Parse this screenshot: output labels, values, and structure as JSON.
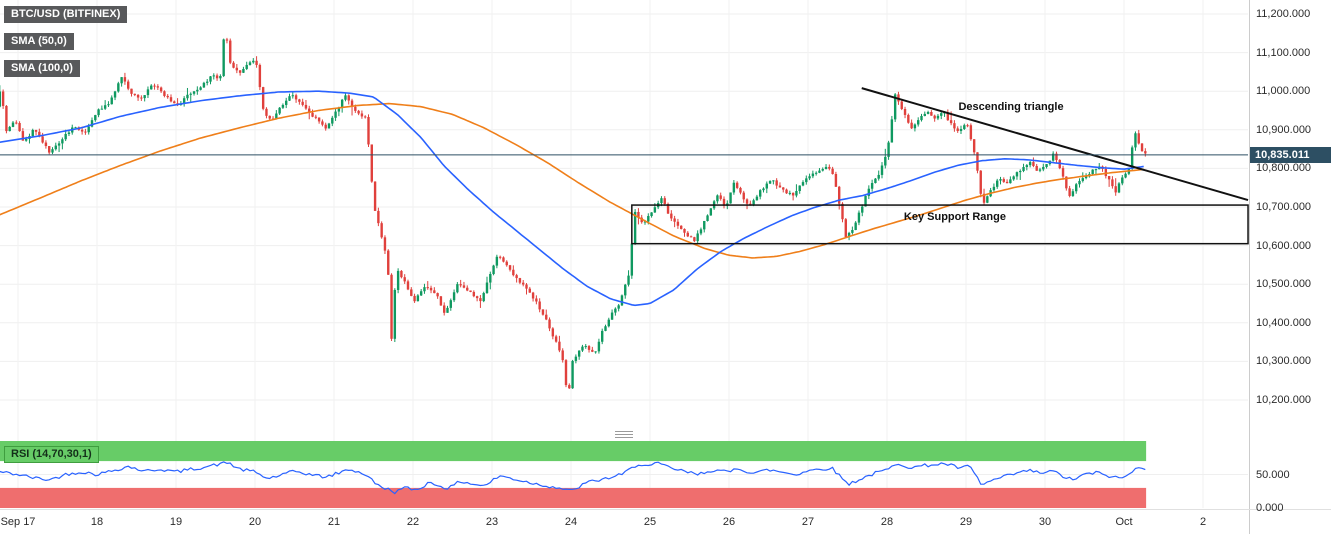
{
  "legend": {
    "symbol": "BTC/USD (BITFINEX)",
    "sma50": "SMA (50,0)",
    "sma100": "SMA (100,0)",
    "rsi": "RSI (14,70,30,1)"
  },
  "price_badge": {
    "label": "10,835.011"
  },
  "colors": {
    "bull": "#0f9960",
    "bear": "#e0403c",
    "sma50": "#2962ff",
    "sma100": "#ef7f1a",
    "rsi_line": "#2962ff",
    "rsi_overbought_band": "#67cc67",
    "rsi_oversold_band": "#ef6e6e",
    "last_price": "#2d4f63",
    "trendline": "#111111",
    "support_box": "#111111"
  },
  "chart_data": {
    "type": "candlestick",
    "title": "BTC/USD (BITFINEX)",
    "indicators": [
      "SMA (50,0)",
      "SMA (100,0)",
      "RSI (14,70,30,1)"
    ],
    "last_price": 10835.011,
    "candles_per_day": 24,
    "x_axis": {
      "labels": [
        {
          "day": 0,
          "label": "Sep 17"
        },
        {
          "day": 1,
          "label": "18"
        },
        {
          "day": 2,
          "label": "19"
        },
        {
          "day": 3,
          "label": "20"
        },
        {
          "day": 4,
          "label": "21"
        },
        {
          "day": 5,
          "label": "22"
        },
        {
          "day": 6,
          "label": "23"
        },
        {
          "day": 7,
          "label": "24"
        },
        {
          "day": 8,
          "label": "25"
        },
        {
          "day": 9,
          "label": "26"
        },
        {
          "day": 10,
          "label": "27"
        },
        {
          "day": 11,
          "label": "28"
        },
        {
          "day": 12,
          "label": "29"
        },
        {
          "day": 13,
          "label": "30"
        },
        {
          "day": 14,
          "label": "Oct"
        },
        {
          "day": 15,
          "label": "2"
        }
      ]
    },
    "y_axis": {
      "min": 10200,
      "max": 11200,
      "tick_step": 100,
      "labels": [
        {
          "value": 11200,
          "label": "11,200.000"
        },
        {
          "value": 11100,
          "label": "11,100.000"
        },
        {
          "value": 11000,
          "label": "11,000.000"
        },
        {
          "value": 10900,
          "label": "10,900.000"
        },
        {
          "value": 10800,
          "label": "10,800.000"
        },
        {
          "value": 10700,
          "label": "10,700.000"
        },
        {
          "value": 10600,
          "label": "10,600.000"
        },
        {
          "value": 10500,
          "label": "10,500.000"
        },
        {
          "value": 10400,
          "label": "10,400.000"
        },
        {
          "value": 10300,
          "label": "10,300.000"
        },
        {
          "value": 10200,
          "label": "10,200.000"
        }
      ]
    },
    "annotations": {
      "descending_triangle": {
        "label": "Descending triangle",
        "day": 12.57,
        "price": 10958
      },
      "key_support_range": {
        "label": "Key Support Range",
        "day": 11.86,
        "price": 10675
      },
      "trendline": {
        "from_day": 10.68,
        "from_price": 11008,
        "to_day": 15.57,
        "to_price": 10718
      },
      "support_box": {
        "from_day": 7.77,
        "to_day": 15.57,
        "top_price": 10705,
        "bottom_price": 10605
      }
    },
    "price_path": [
      [
        -0.23,
        10960
      ],
      [
        -0.18,
        11010
      ],
      [
        -0.1,
        10890
      ],
      [
        0.0,
        10930
      ],
      [
        0.1,
        10870
      ],
      [
        0.25,
        10900
      ],
      [
        0.45,
        10840
      ],
      [
        0.6,
        10875
      ],
      [
        0.75,
        10910
      ],
      [
        0.9,
        10890
      ],
      [
        1.05,
        10950
      ],
      [
        1.2,
        10970
      ],
      [
        1.35,
        11040
      ],
      [
        1.45,
        11000
      ],
      [
        1.6,
        10980
      ],
      [
        1.75,
        11020
      ],
      [
        1.9,
        10990
      ],
      [
        2.05,
        10960
      ],
      [
        2.2,
        10990
      ],
      [
        2.35,
        11010
      ],
      [
        2.5,
        11040
      ],
      [
        2.6,
        11030
      ],
      [
        2.66,
        11165
      ],
      [
        2.73,
        11070
      ],
      [
        2.85,
        11050
      ],
      [
        2.95,
        11070
      ],
      [
        3.05,
        11085
      ],
      [
        3.15,
        10950
      ],
      [
        3.25,
        10920
      ],
      [
        3.4,
        10970
      ],
      [
        3.5,
        10995
      ],
      [
        3.65,
        10960
      ],
      [
        3.8,
        10930
      ],
      [
        3.95,
        10905
      ],
      [
        4.1,
        10960
      ],
      [
        4.18,
        10995
      ],
      [
        4.3,
        10950
      ],
      [
        4.45,
        10930
      ],
      [
        4.55,
        10700
      ],
      [
        4.65,
        10620
      ],
      [
        4.72,
        10560
      ],
      [
        4.77,
        10360
      ],
      [
        4.83,
        10540
      ],
      [
        4.95,
        10500
      ],
      [
        5.05,
        10455
      ],
      [
        5.2,
        10500
      ],
      [
        5.35,
        10470
      ],
      [
        5.45,
        10420
      ],
      [
        5.6,
        10500
      ],
      [
        5.75,
        10480
      ],
      [
        5.9,
        10455
      ],
      [
        6.05,
        10545
      ],
      [
        6.12,
        10575
      ],
      [
        6.25,
        10540
      ],
      [
        6.4,
        10505
      ],
      [
        6.55,
        10470
      ],
      [
        6.7,
        10420
      ],
      [
        6.85,
        10350
      ],
      [
        6.96,
        10290
      ],
      [
        7.0,
        10185
      ],
      [
        7.05,
        10295
      ],
      [
        7.2,
        10345
      ],
      [
        7.35,
        10320
      ],
      [
        7.45,
        10385
      ],
      [
        7.55,
        10420
      ],
      [
        7.65,
        10445
      ],
      [
        7.78,
        10530
      ],
      [
        7.85,
        10690
      ],
      [
        7.95,
        10655
      ],
      [
        8.1,
        10700
      ],
      [
        8.2,
        10725
      ],
      [
        8.3,
        10670
      ],
      [
        8.45,
        10640
      ],
      [
        8.6,
        10612
      ],
      [
        8.7,
        10650
      ],
      [
        8.8,
        10690
      ],
      [
        8.9,
        10730
      ],
      [
        9.0,
        10700
      ],
      [
        9.1,
        10762
      ],
      [
        9.2,
        10730
      ],
      [
        9.3,
        10705
      ],
      [
        9.45,
        10745
      ],
      [
        9.6,
        10770
      ],
      [
        9.7,
        10745
      ],
      [
        9.85,
        10730
      ],
      [
        10.0,
        10770
      ],
      [
        10.1,
        10785
      ],
      [
        10.25,
        10805
      ],
      [
        10.35,
        10790
      ],
      [
        10.45,
        10700
      ],
      [
        10.52,
        10622
      ],
      [
        10.62,
        10645
      ],
      [
        10.72,
        10700
      ],
      [
        10.82,
        10755
      ],
      [
        10.95,
        10790
      ],
      [
        11.05,
        10850
      ],
      [
        11.15,
        10995
      ],
      [
        11.25,
        10945
      ],
      [
        11.35,
        10905
      ],
      [
        11.45,
        10930
      ],
      [
        11.55,
        10945
      ],
      [
        11.65,
        10930
      ],
      [
        11.75,
        10950
      ],
      [
        11.85,
        10915
      ],
      [
        11.95,
        10895
      ],
      [
        12.05,
        10920
      ],
      [
        12.15,
        10840
      ],
      [
        12.25,
        10705
      ],
      [
        12.35,
        10740
      ],
      [
        12.45,
        10772
      ],
      [
        12.55,
        10760
      ],
      [
        12.65,
        10780
      ],
      [
        12.75,
        10800
      ],
      [
        12.85,
        10815
      ],
      [
        12.95,
        10795
      ],
      [
        13.05,
        10805
      ],
      [
        13.15,
        10840
      ],
      [
        13.25,
        10790
      ],
      [
        13.35,
        10725
      ],
      [
        13.45,
        10760
      ],
      [
        13.55,
        10780
      ],
      [
        13.65,
        10795
      ],
      [
        13.75,
        10805
      ],
      [
        13.85,
        10770
      ],
      [
        13.95,
        10735
      ],
      [
        14.0,
        10775
      ],
      [
        14.08,
        10790
      ],
      [
        14.12,
        10800
      ],
      [
        14.17,
        10902
      ],
      [
        14.23,
        10862
      ],
      [
        14.28,
        10838
      ]
    ],
    "sma50": [
      [
        -0.23,
        10868
      ],
      [
        0.3,
        10885
      ],
      [
        0.8,
        10905
      ],
      [
        1.3,
        10935
      ],
      [
        1.8,
        10958
      ],
      [
        2.3,
        10975
      ],
      [
        2.8,
        10988
      ],
      [
        3.3,
        10998
      ],
      [
        3.8,
        11000
      ],
      [
        4.2,
        10995
      ],
      [
        4.5,
        10985
      ],
      [
        4.8,
        10940
      ],
      [
        5.1,
        10880
      ],
      [
        5.4,
        10805
      ],
      [
        5.7,
        10745
      ],
      [
        6.0,
        10690
      ],
      [
        6.3,
        10640
      ],
      [
        6.6,
        10590
      ],
      [
        6.9,
        10540
      ],
      [
        7.2,
        10495
      ],
      [
        7.5,
        10462
      ],
      [
        7.8,
        10445
      ],
      [
        8.0,
        10450
      ],
      [
        8.3,
        10485
      ],
      [
        8.6,
        10540
      ],
      [
        8.9,
        10585
      ],
      [
        9.2,
        10620
      ],
      [
        9.5,
        10650
      ],
      [
        9.8,
        10678
      ],
      [
        10.1,
        10700
      ],
      [
        10.4,
        10718
      ],
      [
        10.7,
        10730
      ],
      [
        11.0,
        10748
      ],
      [
        11.3,
        10768
      ],
      [
        11.6,
        10790
      ],
      [
        11.9,
        10808
      ],
      [
        12.2,
        10820
      ],
      [
        12.5,
        10825
      ],
      [
        12.8,
        10822
      ],
      [
        13.1,
        10815
      ],
      [
        13.4,
        10808
      ],
      [
        13.7,
        10802
      ],
      [
        14.0,
        10798
      ],
      [
        14.28,
        10806
      ]
    ],
    "sma100": [
      [
        -0.23,
        10680
      ],
      [
        0.3,
        10725
      ],
      [
        0.8,
        10768
      ],
      [
        1.3,
        10808
      ],
      [
        1.8,
        10845
      ],
      [
        2.3,
        10878
      ],
      [
        2.8,
        10905
      ],
      [
        3.3,
        10930
      ],
      [
        3.8,
        10950
      ],
      [
        4.3,
        10963
      ],
      [
        4.7,
        10968
      ],
      [
        5.1,
        10960
      ],
      [
        5.5,
        10940
      ],
      [
        5.9,
        10905
      ],
      [
        6.3,
        10862
      ],
      [
        6.7,
        10815
      ],
      [
        7.1,
        10762
      ],
      [
        7.5,
        10712
      ],
      [
        7.9,
        10668
      ],
      [
        8.3,
        10625
      ],
      [
        8.7,
        10592
      ],
      [
        9.0,
        10575
      ],
      [
        9.3,
        10568
      ],
      [
        9.6,
        10572
      ],
      [
        9.9,
        10585
      ],
      [
        10.2,
        10602
      ],
      [
        10.5,
        10622
      ],
      [
        10.8,
        10642
      ],
      [
        11.1,
        10660
      ],
      [
        11.4,
        10678
      ],
      [
        11.7,
        10698
      ],
      [
        12.0,
        10718
      ],
      [
        12.3,
        10735
      ],
      [
        12.6,
        10750
      ],
      [
        12.9,
        10762
      ],
      [
        13.2,
        10772
      ],
      [
        13.5,
        10780
      ],
      [
        13.8,
        10788
      ],
      [
        14.28,
        10798
      ]
    ],
    "rsi": {
      "overbought": 70,
      "oversold": 30,
      "axis_labels": [
        {
          "value": 50,
          "label": "50.000"
        },
        {
          "value": 0,
          "label": "0.000"
        }
      ],
      "points": [
        [
          -0.23,
          54
        ],
        [
          0.0,
          50
        ],
        [
          0.2,
          45
        ],
        [
          0.4,
          42
        ],
        [
          0.6,
          50
        ],
        [
          0.8,
          54
        ],
        [
          1.0,
          50
        ],
        [
          1.2,
          56
        ],
        [
          1.4,
          62
        ],
        [
          1.6,
          55
        ],
        [
          1.8,
          58
        ],
        [
          2.0,
          54
        ],
        [
          2.2,
          58
        ],
        [
          2.4,
          62
        ],
        [
          2.66,
          68
        ],
        [
          2.8,
          58
        ],
        [
          3.0,
          54
        ],
        [
          3.15,
          44
        ],
        [
          3.3,
          48
        ],
        [
          3.5,
          55
        ],
        [
          3.7,
          50
        ],
        [
          3.9,
          46
        ],
        [
          4.1,
          54
        ],
        [
          4.2,
          58
        ],
        [
          4.4,
          50
        ],
        [
          4.55,
          34
        ],
        [
          4.77,
          24
        ],
        [
          4.9,
          30
        ],
        [
          5.05,
          27
        ],
        [
          5.2,
          38
        ],
        [
          5.35,
          33
        ],
        [
          5.45,
          29
        ],
        [
          5.6,
          40
        ],
        [
          5.75,
          36
        ],
        [
          5.9,
          33
        ],
        [
          6.1,
          48
        ],
        [
          6.25,
          44
        ],
        [
          6.4,
          40
        ],
        [
          6.6,
          35
        ],
        [
          6.85,
          30
        ],
        [
          7.0,
          25
        ],
        [
          7.2,
          38
        ],
        [
          7.45,
          44
        ],
        [
          7.65,
          50
        ],
        [
          7.85,
          66
        ],
        [
          8.0,
          62
        ],
        [
          8.1,
          67
        ],
        [
          8.25,
          60
        ],
        [
          8.45,
          54
        ],
        [
          8.6,
          50
        ],
        [
          8.8,
          57
        ],
        [
          9.0,
          53
        ],
        [
          9.1,
          60
        ],
        [
          9.3,
          52
        ],
        [
          9.5,
          57
        ],
        [
          9.7,
          53
        ],
        [
          9.85,
          50
        ],
        [
          10.0,
          56
        ],
        [
          10.15,
          58
        ],
        [
          10.3,
          60
        ],
        [
          10.45,
          42
        ],
        [
          10.52,
          36
        ],
        [
          10.7,
          45
        ],
        [
          10.85,
          52
        ],
        [
          11.0,
          57
        ],
        [
          11.15,
          67
        ],
        [
          11.3,
          60
        ],
        [
          11.45,
          63
        ],
        [
          11.6,
          65
        ],
        [
          11.75,
          66
        ],
        [
          11.9,
          60
        ],
        [
          12.05,
          62
        ],
        [
          12.2,
          34
        ],
        [
          12.35,
          42
        ],
        [
          12.5,
          47
        ],
        [
          12.65,
          52
        ],
        [
          12.8,
          56
        ],
        [
          12.95,
          52
        ],
        [
          13.1,
          55
        ],
        [
          13.25,
          46
        ],
        [
          13.35,
          42
        ],
        [
          13.5,
          50
        ],
        [
          13.65,
          53
        ],
        [
          13.8,
          48
        ],
        [
          13.95,
          44
        ],
        [
          14.1,
          52
        ],
        [
          14.17,
          63
        ],
        [
          14.28,
          59
        ]
      ]
    }
  }
}
